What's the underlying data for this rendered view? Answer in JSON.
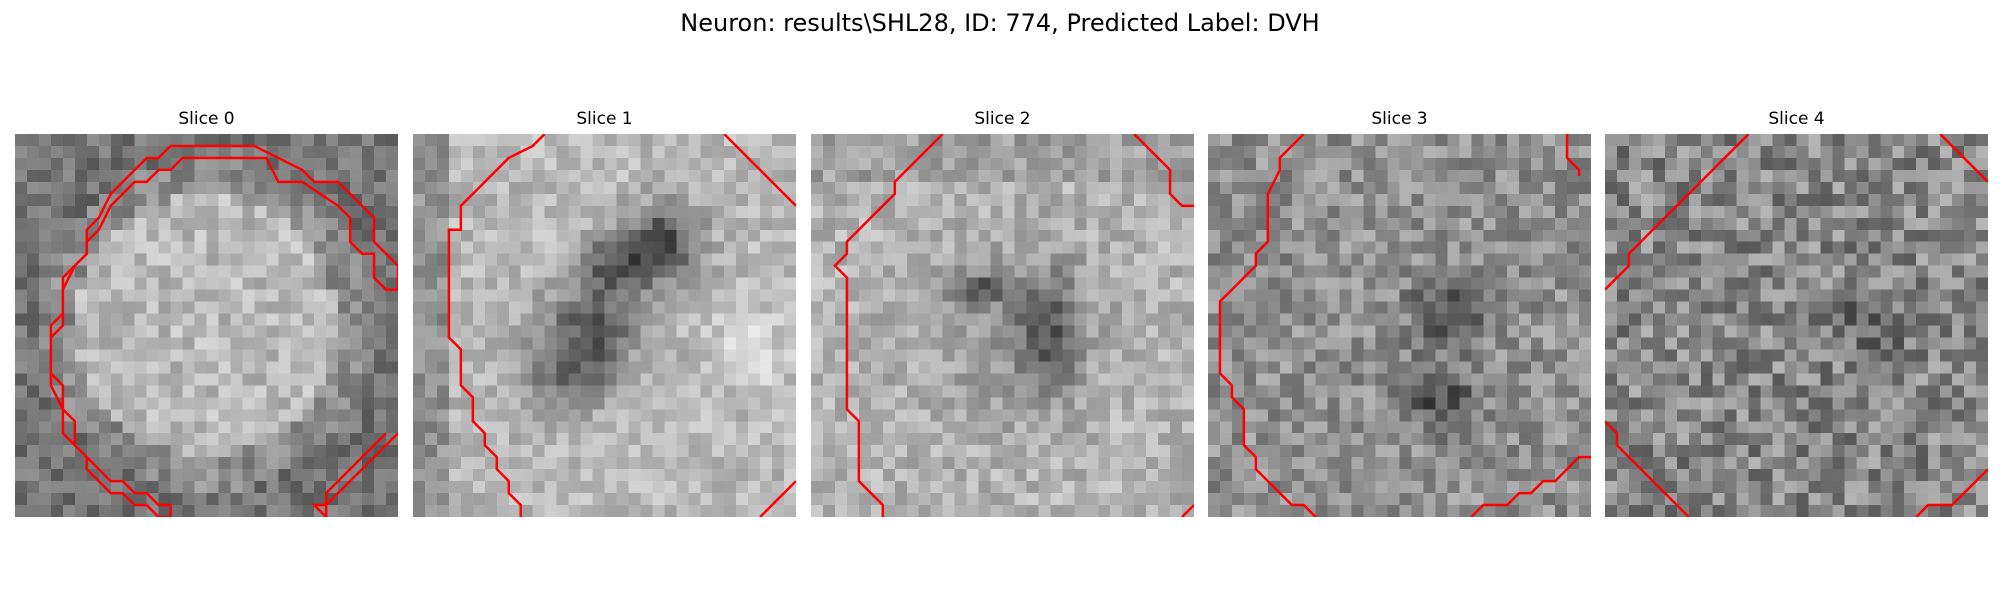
{
  "figure": {
    "title": "Neuron: results\\SHL28, ID: 774, Predicted Label: DVH"
  },
  "panels": [
    {
      "title": "Slice 0"
    },
    {
      "title": "Slice 1"
    },
    {
      "title": "Slice 2"
    },
    {
      "title": "Slice 3"
    },
    {
      "title": "Slice 4"
    }
  ],
  "colors": {
    "contour": "#ff0000",
    "background": "#ffffff"
  }
}
